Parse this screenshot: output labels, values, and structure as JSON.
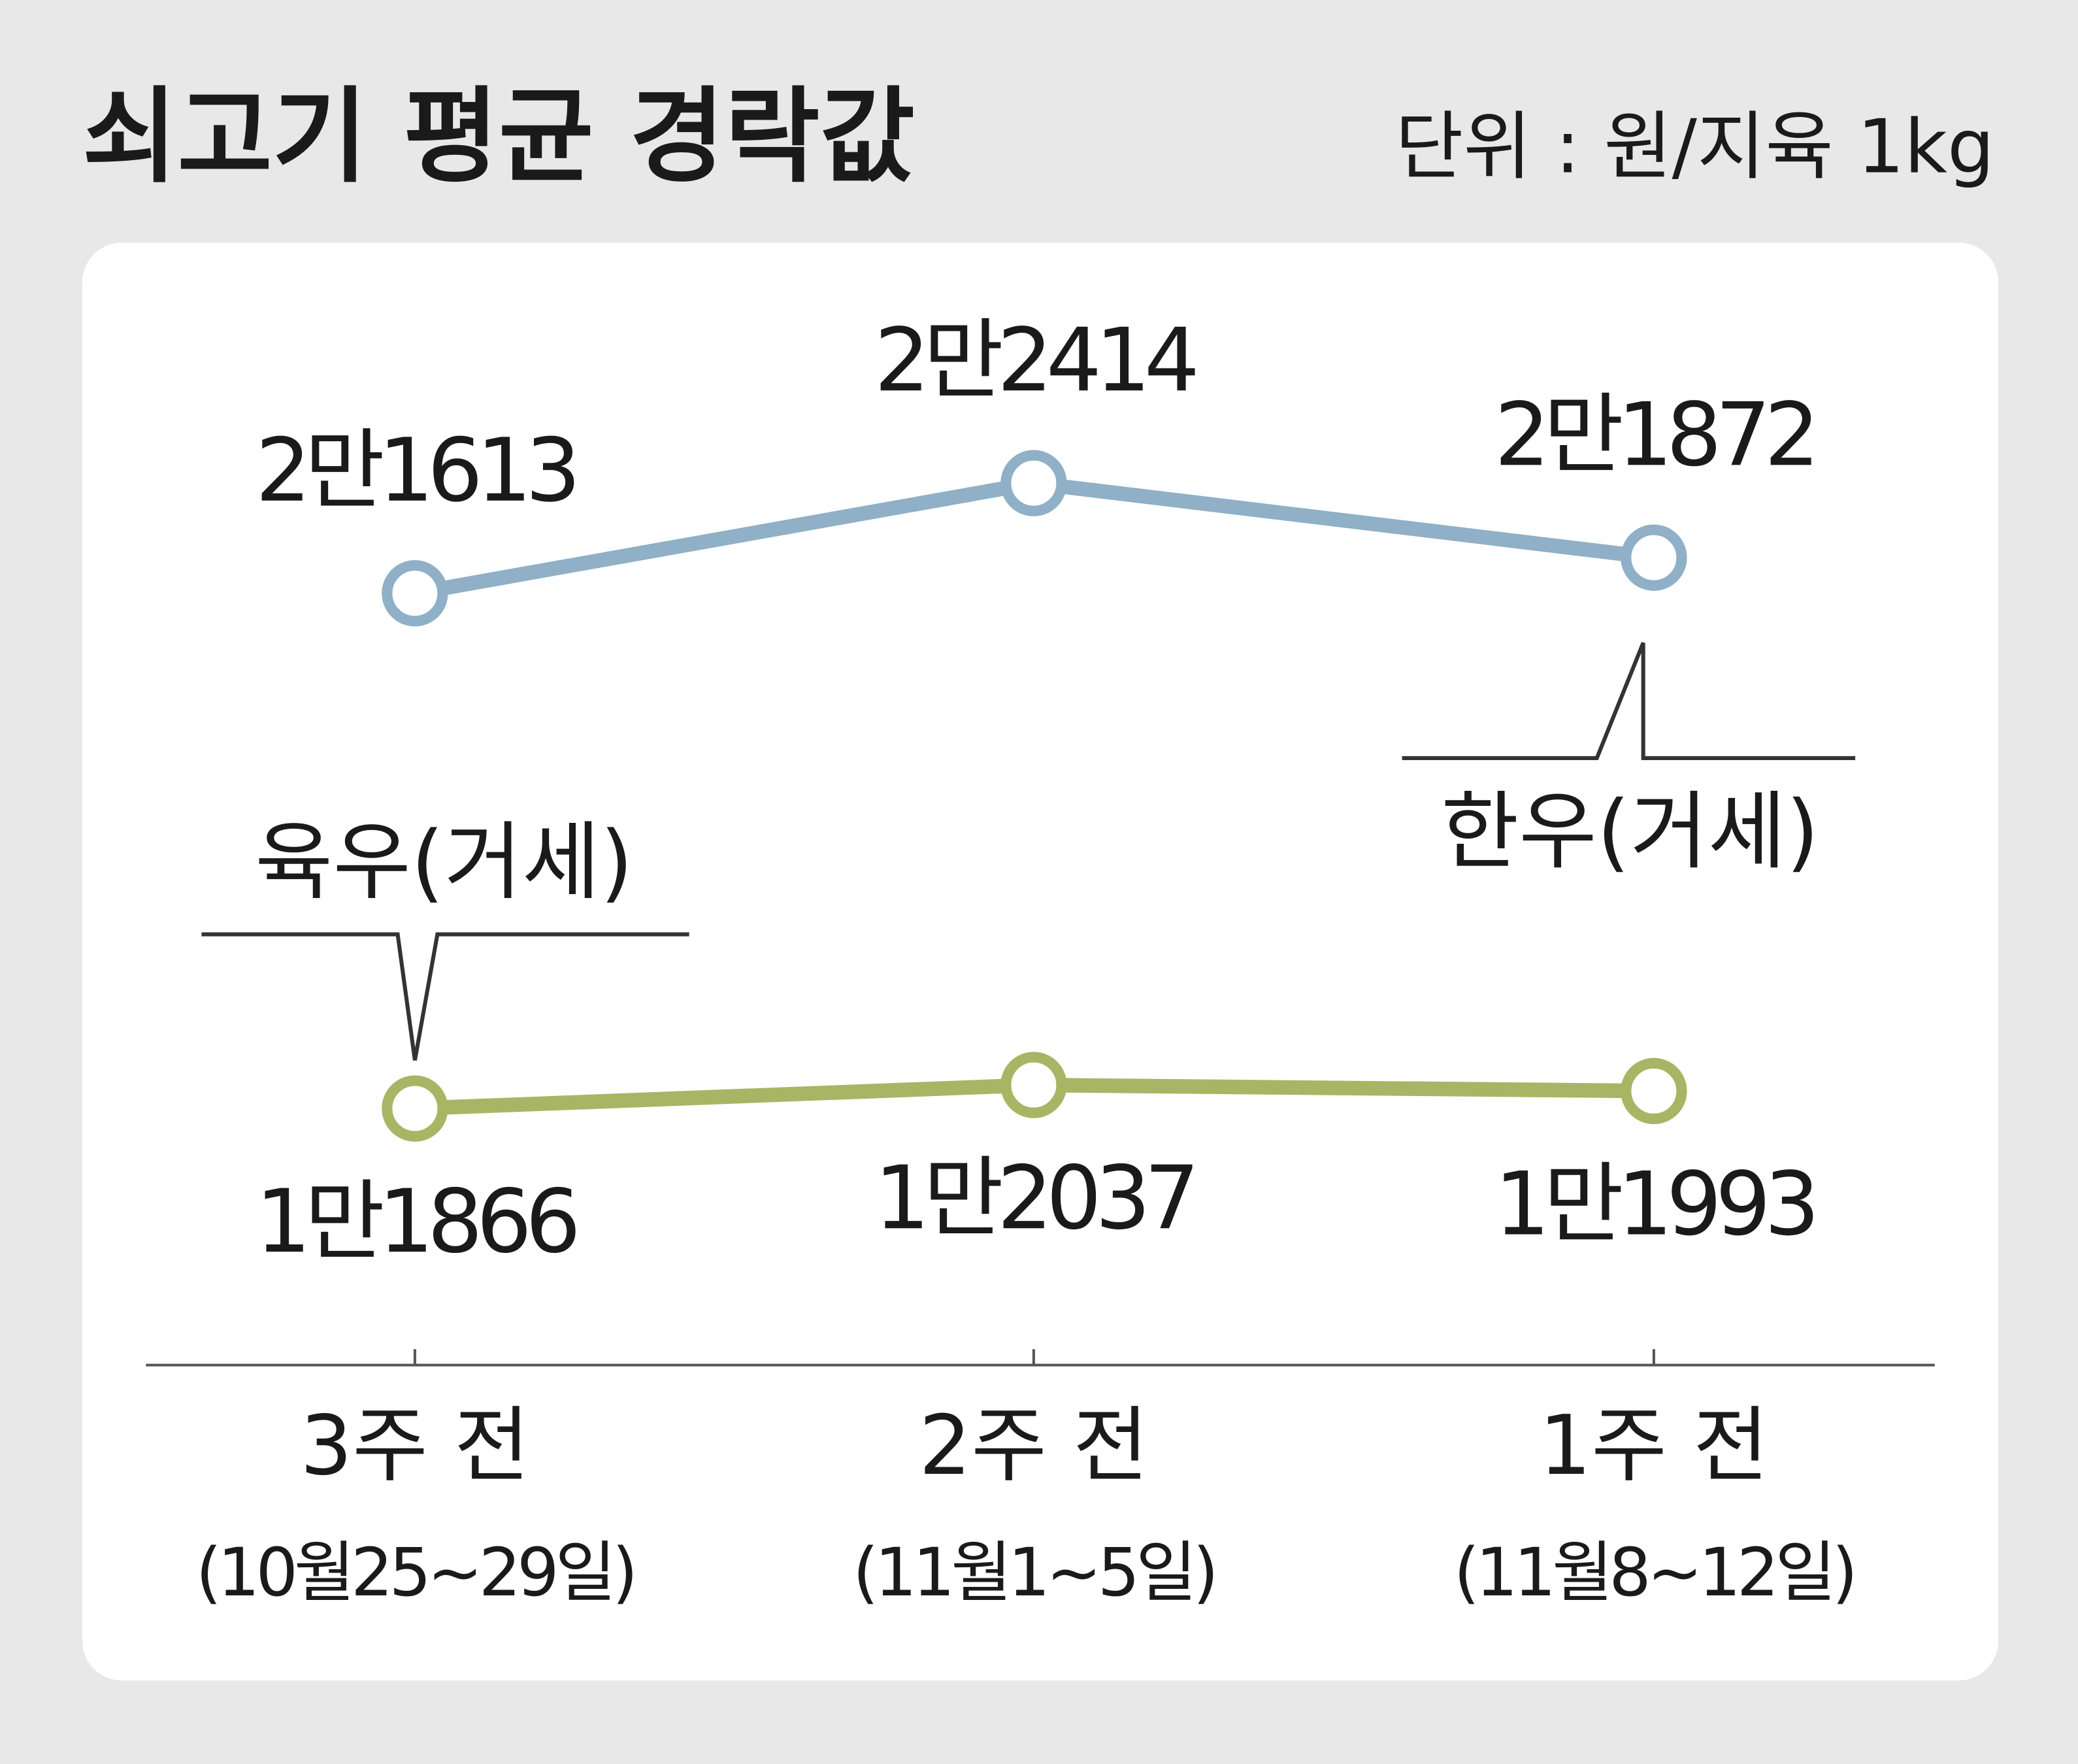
{
  "chart_data": {
    "type": "line",
    "title": "쇠고기 평균 경락값",
    "subtitle": "단위 : 원/지육 1kg",
    "categories": [
      "3주 전",
      "2주 전",
      "1주 전"
    ],
    "category_dates": [
      "(10월25~29일)",
      "(11월1~5일)",
      "(11월8~12일)"
    ],
    "ylim": [
      16000,
      24000
    ],
    "y2lim": [
      10000,
      18000
    ],
    "series": [
      {
        "name": "한우(거세)",
        "color": "#8fb0c6",
        "values": [
          21613,
          22414,
          21872
        ],
        "value_labels": [
          "2만1613",
          "2만2414",
          "2만1872"
        ]
      },
      {
        "name": "육우(거세)",
        "color": "#a8b565",
        "axis": "y2",
        "values": [
          11866,
          12037,
          11993
        ],
        "value_labels": [
          "1만1866",
          "1만2037",
          "1만1993"
        ]
      }
    ]
  }
}
